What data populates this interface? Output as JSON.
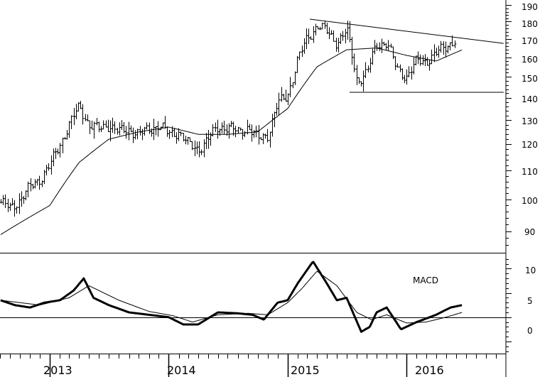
{
  "chart_data": [
    {
      "type": "ohlc",
      "panel": "price",
      "y_scale": "log",
      "ylim": [
        85,
        192
      ],
      "yticks": [
        90,
        100,
        110,
        120,
        130,
        140,
        150,
        160,
        170,
        180,
        190
      ],
      "xlim": [
        "2012-08-01",
        "2016-11-01"
      ],
      "xticks": [
        {
          "date": "2013-01-01",
          "label": "2013"
        },
        {
          "date": "2014-01-01",
          "label": "2014"
        },
        {
          "date": "2015-01-01",
          "label": "2015"
        },
        {
          "date": "2016-01-01",
          "label": "2016"
        }
      ],
      "price_anchors": [
        [
          "2012-08-03",
          99
        ],
        [
          "2012-09-01",
          97
        ],
        [
          "2012-10-01",
          100
        ],
        [
          "2012-11-01",
          104
        ],
        [
          "2012-12-01",
          107
        ],
        [
          "2013-01-01",
          112
        ],
        [
          "2013-02-01",
          120
        ],
        [
          "2013-03-01",
          128
        ],
        [
          "2013-04-01",
          136
        ],
        [
          "2013-05-01",
          128
        ],
        [
          "2013-06-01",
          126
        ],
        [
          "2013-07-01",
          128
        ],
        [
          "2013-08-01",
          125
        ],
        [
          "2013-09-01",
          126
        ],
        [
          "2013-10-01",
          124
        ],
        [
          "2013-11-01",
          126
        ],
        [
          "2013-12-01",
          128
        ],
        [
          "2014-01-01",
          124
        ],
        [
          "2014-02-01",
          125
        ],
        [
          "2014-03-01",
          120
        ],
        [
          "2014-04-01",
          118
        ],
        [
          "2014-05-01",
          122
        ],
        [
          "2014-06-01",
          127
        ],
        [
          "2014-07-01",
          127
        ],
        [
          "2014-08-01",
          125
        ],
        [
          "2014-09-01",
          127
        ],
        [
          "2014-10-01",
          122
        ],
        [
          "2014-11-01",
          124
        ],
        [
          "2014-12-01",
          137
        ],
        [
          "2015-01-01",
          141
        ],
        [
          "2015-02-01",
          159
        ],
        [
          "2015-03-01",
          170
        ],
        [
          "2015-04-01",
          178
        ],
        [
          "2015-05-01",
          174
        ],
        [
          "2015-06-01",
          168
        ],
        [
          "2015-07-01",
          175
        ],
        [
          "2015-08-01",
          148
        ],
        [
          "2015-09-01",
          152
        ],
        [
          "2015-10-01",
          167
        ],
        [
          "2015-11-01",
          168
        ],
        [
          "2015-12-01",
          154
        ],
        [
          "2016-01-01",
          150
        ],
        [
          "2016-02-01",
          158
        ],
        [
          "2016-03-01",
          158
        ],
        [
          "2016-04-01",
          162
        ],
        [
          "2016-05-01",
          166
        ],
        [
          "2016-06-01",
          170
        ]
      ],
      "moving_average": [
        [
          "2012-08-03",
          89
        ],
        [
          "2013-01-01",
          98
        ],
        [
          "2013-04-01",
          113
        ],
        [
          "2013-07-01",
          122
        ],
        [
          "2013-10-01",
          125
        ],
        [
          "2014-01-01",
          127
        ],
        [
          "2014-04-01",
          124
        ],
        [
          "2014-07-01",
          124
        ],
        [
          "2014-10-01",
          125
        ],
        [
          "2015-01-01",
          135
        ],
        [
          "2015-04-01",
          155
        ],
        [
          "2015-07-01",
          164
        ],
        [
          "2015-10-01",
          165
        ],
        [
          "2016-01-01",
          161
        ],
        [
          "2016-04-01",
          158
        ],
        [
          "2016-06-20",
          164
        ]
      ],
      "resistance_line": [
        [
          "2015-03-10",
          181.5
        ],
        [
          "2016-10-25",
          167.5
        ]
      ],
      "support_line": [
        [
          "2015-07-10",
          142.5
        ],
        [
          "2016-10-25",
          142.5
        ]
      ]
    },
    {
      "type": "line",
      "panel": "indicator",
      "label": "MACD",
      "ylim": [
        -7.5,
        13
      ],
      "yticks": [
        0,
        5,
        10
      ],
      "macd": [
        [
          "2012-08-03",
          3.5
        ],
        [
          "2012-09-15",
          2.5
        ],
        [
          "2012-11-01",
          2.0
        ],
        [
          "2012-12-15",
          3.0
        ],
        [
          "2013-02-01",
          3.5
        ],
        [
          "2013-03-15",
          5.5
        ],
        [
          "2013-04-15",
          8.0
        ],
        [
          "2013-05-15",
          4.0
        ],
        [
          "2013-07-01",
          2.5
        ],
        [
          "2013-09-01",
          1.0
        ],
        [
          "2013-11-01",
          0.5
        ],
        [
          "2014-01-01",
          0.0
        ],
        [
          "2014-02-15",
          -1.5
        ],
        [
          "2014-04-01",
          -1.5
        ],
        [
          "2014-06-01",
          1.0
        ],
        [
          "2014-08-01",
          0.8
        ],
        [
          "2014-09-15",
          0.5
        ],
        [
          "2014-10-20",
          -0.5
        ],
        [
          "2014-12-01",
          3.0
        ],
        [
          "2015-01-01",
          3.5
        ],
        [
          "2015-02-01",
          7.0
        ],
        [
          "2015-03-20",
          11.5
        ],
        [
          "2015-05-01",
          7.0
        ],
        [
          "2015-06-01",
          3.5
        ],
        [
          "2015-07-01",
          4.0
        ],
        [
          "2015-08-15",
          -3.0
        ],
        [
          "2015-09-10",
          -2.0
        ],
        [
          "2015-10-01",
          1.0
        ],
        [
          "2015-11-01",
          2.0
        ],
        [
          "2015-12-15",
          -2.5
        ],
        [
          "2016-02-01",
          -1.0
        ],
        [
          "2016-04-01",
          0.5
        ],
        [
          "2016-05-15",
          2.0
        ],
        [
          "2016-06-20",
          2.5
        ]
      ],
      "signal": [
        [
          "2012-08-03",
          3.5
        ],
        [
          "2012-12-01",
          2.5
        ],
        [
          "2013-03-01",
          4.0
        ],
        [
          "2013-05-01",
          6.5
        ],
        [
          "2013-08-01",
          3.5
        ],
        [
          "2013-11-01",
          1.2
        ],
        [
          "2014-01-15",
          0.3
        ],
        [
          "2014-03-15",
          -1.0
        ],
        [
          "2014-06-01",
          0.5
        ],
        [
          "2014-09-01",
          0.8
        ],
        [
          "2014-11-01",
          0.5
        ],
        [
          "2015-01-01",
          3.0
        ],
        [
          "2015-02-15",
          6.0
        ],
        [
          "2015-04-01",
          9.5
        ],
        [
          "2015-06-01",
          6.5
        ],
        [
          "2015-08-01",
          1.0
        ],
        [
          "2015-09-15",
          -0.5
        ],
        [
          "2015-11-01",
          0.5
        ],
        [
          "2016-01-01",
          -1.2
        ],
        [
          "2016-03-01",
          -1.0
        ],
        [
          "2016-05-01",
          0.0
        ],
        [
          "2016-06-20",
          1.0
        ]
      ]
    }
  ],
  "labels": {
    "macd": "MACD",
    "price_ticks": [
      "190",
      "180",
      "170",
      "160",
      "150",
      "140",
      "130",
      "120",
      "110",
      "100",
      "90"
    ],
    "macd_ticks": [
      "10",
      "5",
      "0"
    ],
    "year_ticks": [
      "2013",
      "2014",
      "2015",
      "2016"
    ]
  }
}
